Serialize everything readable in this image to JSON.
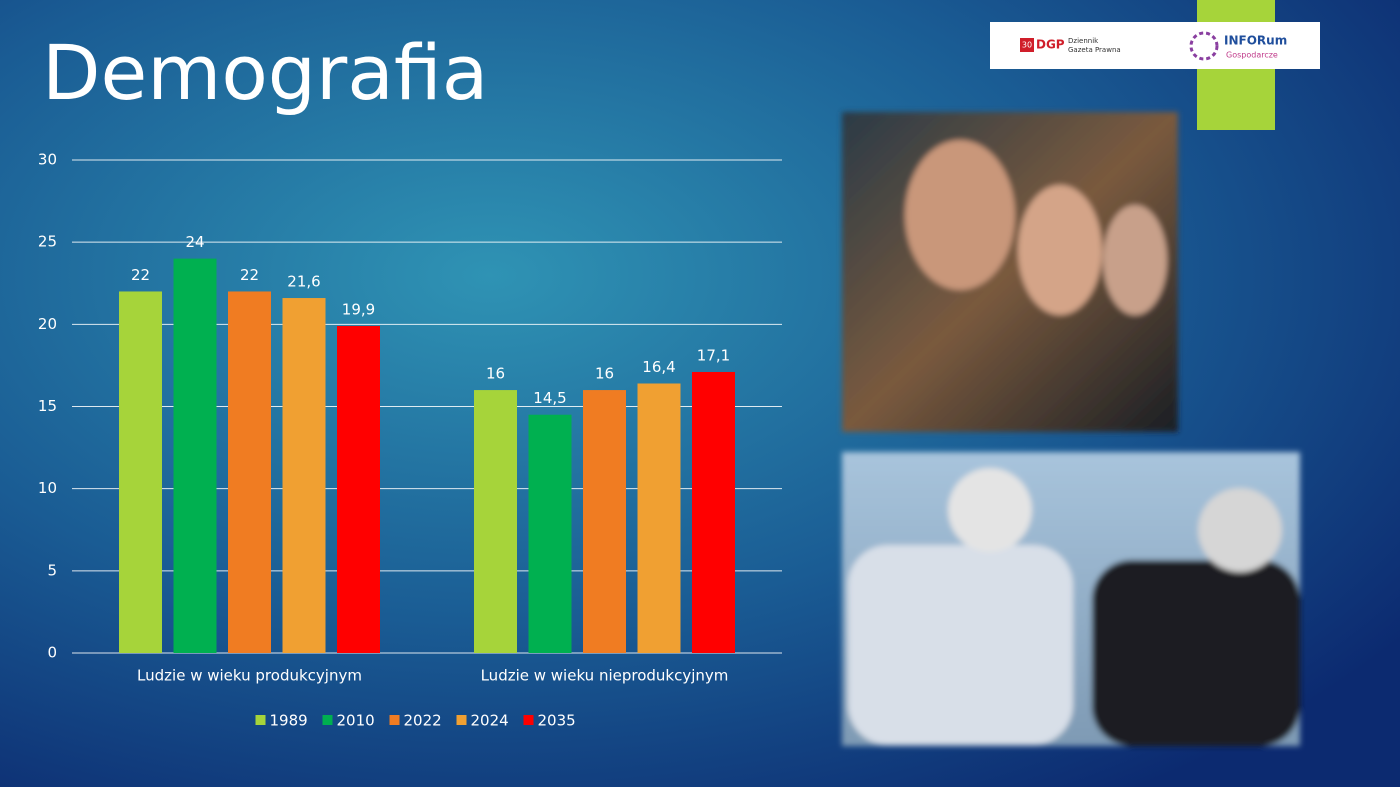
{
  "header": {
    "logos": [
      "30",
      "DGP",
      "Dziennik",
      "Gazeta Prawna",
      "INFORum",
      "Gospodarcze"
    ]
  },
  "chart_data": {
    "type": "bar",
    "title": "Demografia",
    "categories": [
      "Ludzie w wieku produkcyjnym",
      "Ludzie w wieku nieprodukcyjnym"
    ],
    "series": [
      {
        "name": "1989",
        "color": "#a6d43a",
        "values": [
          22,
          16
        ],
        "value_labels": [
          "22",
          "16"
        ]
      },
      {
        "name": "2010",
        "color": "#00b050",
        "values": [
          24,
          14.5
        ],
        "value_labels": [
          "24",
          "14,5"
        ]
      },
      {
        "name": "2022",
        "color": "#f07c22",
        "values": [
          22,
          16
        ],
        "value_labels": [
          "22",
          "16"
        ]
      },
      {
        "name": "2024",
        "color": "#f0a032",
        "values": [
          21.6,
          16.4
        ],
        "value_labels": [
          "21,6",
          "16,4"
        ]
      },
      {
        "name": "2035",
        "color": "#ff0000",
        "values": [
          19.9,
          17.1
        ],
        "value_labels": [
          "19,9",
          "17,1"
        ]
      }
    ],
    "ylim": [
      0,
      30
    ],
    "yticks": [
      0,
      5,
      10,
      15,
      20,
      25,
      30
    ],
    "grid": true,
    "legend": "bottom"
  }
}
